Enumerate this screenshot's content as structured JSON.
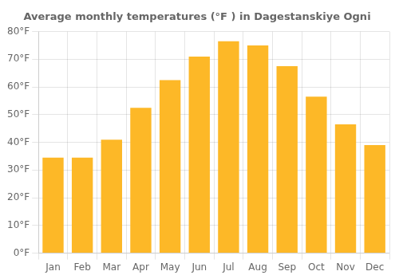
{
  "chart_data": {
    "type": "bar",
    "title": "Average monthly temperatures (°F ) in Dagestanskiye Ogni",
    "categories": [
      "Jan",
      "Feb",
      "Mar",
      "Apr",
      "May",
      "Jun",
      "Jul",
      "Aug",
      "Sep",
      "Oct",
      "Nov",
      "Dec"
    ],
    "values": [
      34.5,
      34.5,
      41.0,
      52.5,
      62.5,
      71.0,
      76.5,
      75.0,
      67.5,
      56.5,
      46.5,
      39.0
    ],
    "color": "#FDB827",
    "ylim": [
      0,
      80
    ],
    "yticks": [
      {
        "value": 0,
        "label": "0°F"
      },
      {
        "value": 10,
        "label": "10°F"
      },
      {
        "value": 20,
        "label": "20°F"
      },
      {
        "value": 30,
        "label": "30°F"
      },
      {
        "value": 40,
        "label": "40°F"
      },
      {
        "value": 50,
        "label": "50°F"
      },
      {
        "value": 60,
        "label": "60°F"
      },
      {
        "value": 70,
        "label": "70°F"
      },
      {
        "value": 80,
        "label": "80°F"
      }
    ],
    "grid": true
  }
}
